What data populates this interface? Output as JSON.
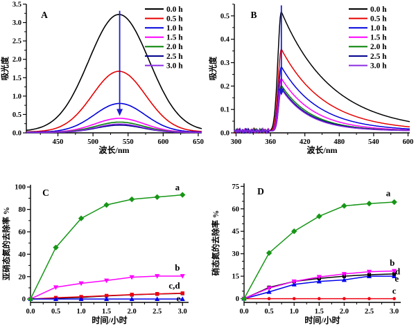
{
  "figure": {
    "background": "#ffffff",
    "panel_labels": [
      "A",
      "B",
      "C",
      "D"
    ]
  },
  "colors": {
    "black": "#000000",
    "red": "#e60000",
    "blue": "#0000dd",
    "magenta": "#ff00ff",
    "green_legend": "#008000",
    "navy": "#00008b",
    "violet": "#8a2be2",
    "series_green": "#169616",
    "series_blue": "#0000ee",
    "series_red": "#ee0011",
    "arrow_blue": "#1c1ccc"
  },
  "chart_data": [
    {
      "id": "A",
      "type": "line",
      "panel_label": "A",
      "xlabel": "波长/nm",
      "ylabel": "吸光度",
      "xlim": [
        405,
        655
      ],
      "ylim": [
        0,
        3.5
      ],
      "xticks": {
        "values": [
          450,
          500,
          550,
          600,
          650
        ],
        "labels": [
          "450",
          "500",
          "550",
          "600",
          "650"
        ],
        "minor_step": 25
      },
      "yticks": {
        "values": [
          0,
          0.5,
          1,
          1.5,
          2,
          2.5,
          3,
          3.5
        ],
        "labels": [
          "0.0",
          "0.5",
          "1.0",
          "1.5",
          "2.0",
          "2.5",
          "3.0",
          "3.5"
        ],
        "minor_step": 0.25
      },
      "legend": {
        "position": "top-right",
        "items": [
          {
            "label": "0.0 h",
            "color": "#000000"
          },
          {
            "label": "0.5 h",
            "color": "#e60000"
          },
          {
            "label": "1.0 h",
            "color": "#0000dd"
          },
          {
            "label": "1.5 h",
            "color": "#ff00ff"
          },
          {
            "label": "2.0 h",
            "color": "#008000"
          },
          {
            "label": "2.5 h",
            "color": "#00008b"
          },
          {
            "label": "3.0 h",
            "color": "#8a2be2"
          }
        ]
      },
      "series": [
        {
          "name": "0.0 h",
          "color": "#000000",
          "curve": "gauss",
          "center": 537,
          "sigma": 43,
          "peak": 3.18,
          "base": 0.04
        },
        {
          "name": "0.5 h",
          "color": "#e60000",
          "curve": "gauss",
          "center": 537,
          "sigma": 38,
          "peak": 1.65,
          "base": 0.025
        },
        {
          "name": "1.0 h",
          "color": "#0000dd",
          "curve": "gauss",
          "center": 538,
          "sigma": 36,
          "peak": 0.78,
          "base": 0.02
        },
        {
          "name": "1.5 h",
          "color": "#ff00ff",
          "curve": "gauss",
          "center": 538,
          "sigma": 35,
          "peak": 0.38,
          "base": 0.015
        },
        {
          "name": "2.0 h",
          "color": "#008000",
          "curve": "gauss",
          "center": 538,
          "sigma": 34,
          "peak": 0.28,
          "base": 0.012
        },
        {
          "name": "2.5 h",
          "color": "#00008b",
          "curve": "gauss",
          "center": 538,
          "sigma": 33,
          "peak": 0.2,
          "base": 0.01
        },
        {
          "name": "3.0 h",
          "color": "#8a2be2",
          "curve": "gauss",
          "center": 538,
          "sigma": 33,
          "peak": 0.23,
          "base": 0.01
        }
      ],
      "arrow": {
        "x": 538,
        "y_from": 3.32,
        "y_to": 0.46,
        "color": "#1c1ccc"
      }
    },
    {
      "id": "B",
      "type": "line",
      "panel_label": "B",
      "xlabel": "波长/nm",
      "ylabel": "吸光度",
      "xlim": [
        297,
        603
      ],
      "ylim": [
        0,
        0.55
      ],
      "xticks": {
        "values": [
          300,
          360,
          420,
          480,
          540,
          600
        ],
        "labels": [
          "300",
          "360",
          "420",
          "480",
          "540",
          "600"
        ],
        "minor_step": 30
      },
      "yticks": {
        "values": [
          0,
          0.1,
          0.2,
          0.3,
          0.4,
          0.5
        ],
        "labels": [
          "0.0",
          "0.1",
          "0.2",
          "0.3",
          "0.4",
          "0.5"
        ],
        "minor_step": 0.05
      },
      "legend": {
        "position": "top-right",
        "items": [
          {
            "label": "0.0 h",
            "color": "#000000"
          },
          {
            "label": "0.5 h",
            "color": "#e60000"
          },
          {
            "label": "1.0 h",
            "color": "#0000dd"
          },
          {
            "label": "1.5 h",
            "color": "#ff00ff"
          },
          {
            "label": "2.0 h",
            "color": "#008000"
          },
          {
            "label": "2.5 h",
            "color": "#00008b"
          },
          {
            "label": "3.0 h",
            "color": "#8a2be2"
          }
        ]
      },
      "series": [
        {
          "name": "0.0 h",
          "color": "#000000",
          "curve": "peakdecay",
          "peak_nm": 379,
          "peak": 0.51,
          "rise_w": 6,
          "tau": 88,
          "base": 0.008,
          "noise": 0.007
        },
        {
          "name": "0.5 h",
          "color": "#e60000",
          "curve": "peakdecay",
          "peak_nm": 379,
          "peak": 0.35,
          "rise_w": 5.5,
          "tau": 75,
          "base": 0.008,
          "noise": 0.007
        },
        {
          "name": "1.0 h",
          "color": "#0000dd",
          "curve": "peakdecay",
          "peak_nm": 379,
          "peak": 0.275,
          "rise_w": 5,
          "tau": 65,
          "base": 0.008,
          "noise": 0.007
        },
        {
          "name": "1.5 h",
          "color": "#ff00ff",
          "curve": "peakdecay",
          "peak_nm": 379,
          "peak": 0.225,
          "rise_w": 5,
          "tau": 57,
          "base": 0.008,
          "noise": 0.007
        },
        {
          "name": "2.0 h",
          "color": "#008000",
          "curve": "peakdecay",
          "peak_nm": 379,
          "peak": 0.195,
          "rise_w": 4.5,
          "tau": 52,
          "base": 0.008,
          "noise": 0.007
        },
        {
          "name": "2.5 h",
          "color": "#00008b",
          "curve": "peakdecay",
          "peak_nm": 379,
          "peak": 0.185,
          "rise_w": 4.5,
          "tau": 50,
          "base": 0.008,
          "noise": 0.007
        },
        {
          "name": "3.0 h",
          "color": "#8a2be2",
          "curve": "peakdecay",
          "peak_nm": 379,
          "peak": 0.18,
          "rise_w": 4.5,
          "tau": 48,
          "base": 0.008,
          "noise": 0.007
        }
      ],
      "arrow": {
        "x": 379,
        "y_from": 0.545,
        "y_to": 0.16,
        "color": "#1c1ccc"
      }
    },
    {
      "id": "C",
      "type": "line",
      "panel_label": "C",
      "xlabel": "时间/小时",
      "ylabel": "亚硝态氮的去除率 %",
      "xlim": [
        0,
        3.12
      ],
      "ylim": [
        -3,
        102
      ],
      "xticks": {
        "values": [
          0,
          0.5,
          1,
          1.5,
          2,
          2.5,
          3
        ],
        "labels": [
          "0.0",
          "0.5",
          "1.0",
          "1.5",
          "2.0",
          "2.5",
          "3.0"
        ],
        "minor_step": 0.25
      },
      "yticks": {
        "values": [
          0,
          20,
          40,
          60,
          80,
          100
        ],
        "labels": [
          "0",
          "20",
          "40",
          "60",
          "80",
          "100"
        ],
        "minor_step": 10
      },
      "x": [
        0,
        0.5,
        1.0,
        1.5,
        2.0,
        2.5,
        3.0
      ],
      "series": [
        {
          "name": "d",
          "color": "#000000",
          "marker": "square",
          "y": [
            0,
            0.7,
            1.5,
            2.8,
            3.8,
            4.5,
            5
          ]
        },
        {
          "name": "c",
          "color": "#ee0011",
          "marker": "square",
          "y": [
            0,
            1.2,
            2,
            3,
            4,
            4.6,
            5.2
          ]
        },
        {
          "name": "e",
          "color": "#0000ee",
          "marker": "triangle-up",
          "y": [
            0,
            0,
            0,
            0,
            0,
            0,
            0
          ]
        },
        {
          "name": "b",
          "color": "#ff00ff",
          "marker": "triangle-down",
          "y": [
            0,
            10.5,
            14,
            16.5,
            19.5,
            20.5,
            20.5
          ]
        },
        {
          "name": "a",
          "color": "#169616",
          "marker": "diamond",
          "y": [
            0,
            46,
            72,
            84,
            89,
            91,
            93
          ]
        }
      ],
      "annotations": [
        {
          "text": "a",
          "x": 2.9,
          "y": 97
        },
        {
          "text": "b",
          "x": 2.9,
          "y": 25.5
        },
        {
          "text": "c,d",
          "x": 2.84,
          "y": 9.5
        },
        {
          "text": "e",
          "x": 2.92,
          "y": -2.2
        }
      ]
    },
    {
      "id": "D",
      "type": "line",
      "panel_label": "D",
      "xlabel": "时间/小时",
      "ylabel": "硝态氮的去除率 %",
      "xlim": [
        0,
        3.13
      ],
      "ylim": [
        -2.5,
        77
      ],
      "xticks": {
        "values": [
          0,
          0.5,
          1,
          1.5,
          2,
          2.5,
          3
        ],
        "labels": [
          "0.0",
          "0.5",
          "1.0",
          "1.5",
          "2.0",
          "2.5",
          "3.0"
        ],
        "minor_step": 0.25
      },
      "yticks": {
        "values": [
          0,
          15,
          30,
          45,
          60,
          75
        ],
        "labels": [
          "0",
          "15",
          "30",
          "45",
          "60",
          "75"
        ],
        "minor_step": 5
      },
      "x": [
        0,
        0.5,
        1.0,
        1.5,
        2.0,
        2.5,
        3.0
      ],
      "series": [
        {
          "name": "e",
          "color": "#0000ee",
          "marker": "triangle-up",
          "y": [
            0,
            4.5,
            9.5,
            11.5,
            12.5,
            15,
            15
          ]
        },
        {
          "name": "d",
          "color": "#000000",
          "marker": "square",
          "y": [
            0,
            7.5,
            11.5,
            13.5,
            15,
            16,
            16.5
          ]
        },
        {
          "name": "b",
          "color": "#ff00ff",
          "marker": "triangle-down",
          "y": [
            0,
            7,
            11.5,
            14.5,
            16.5,
            18,
            18.5
          ]
        },
        {
          "name": "c",
          "color": "#ee0011",
          "marker": "circle",
          "y": [
            0,
            0,
            0,
            0,
            0,
            0,
            0
          ]
        },
        {
          "name": "a",
          "color": "#169616",
          "marker": "diamond",
          "y": [
            0,
            30.5,
            45,
            55,
            62,
            63.5,
            64.5
          ]
        }
      ],
      "annotations": [
        {
          "text": "a",
          "x": 2.88,
          "y": 68.5
        },
        {
          "text": "b",
          "x": 2.96,
          "y": 22
        },
        {
          "text": "d",
          "x": 3.07,
          "y": 16.3
        },
        {
          "text": "e",
          "x": 3.05,
          "y": 11.3
        },
        {
          "text": "c",
          "x": 3.0,
          "y": 3.2
        }
      ]
    }
  ]
}
